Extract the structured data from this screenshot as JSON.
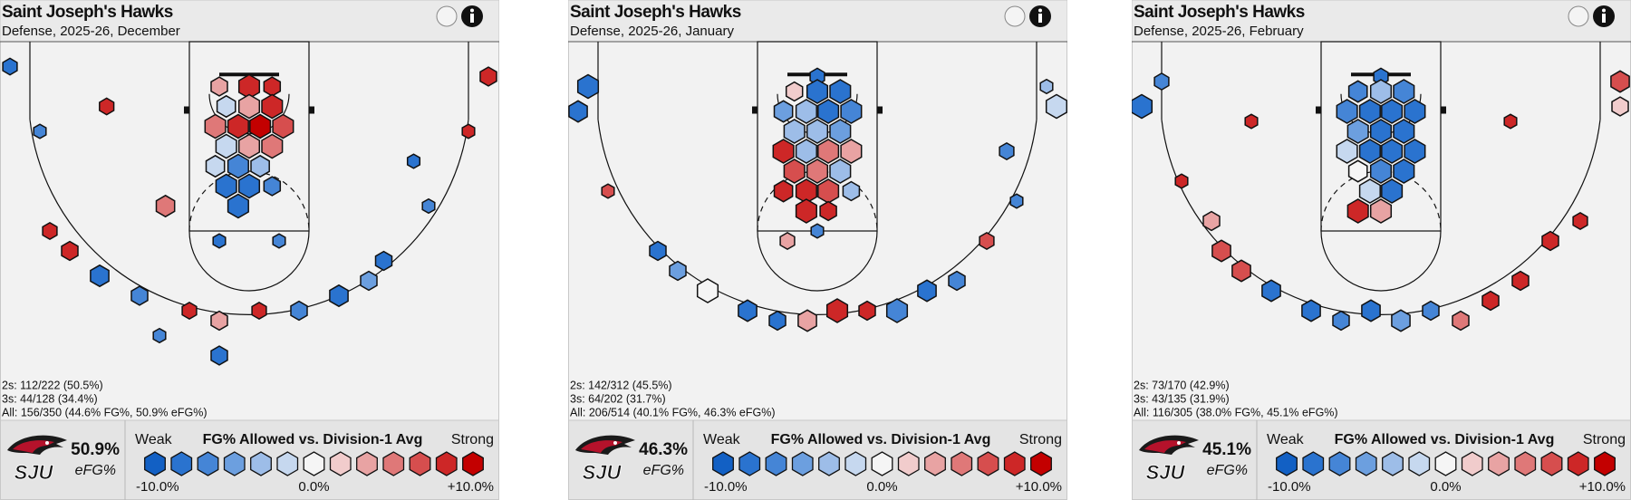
{
  "legend": {
    "weak": "Weak",
    "title": "FG% Allowed vs. Division-1 Avg",
    "strong": "Strong",
    "ticks": [
      {
        "value": -10,
        "label": "-10.0%"
      },
      {
        "value": 0,
        "label": "0.0%"
      },
      {
        "value": 10,
        "label": "+10.0%"
      }
    ],
    "colors": [
      "#1260c4",
      "#2a73cf",
      "#4585d6",
      "#6c9fdf",
      "#9dbde8",
      "#c6d8ef",
      "#f5f5f5",
      "#f1cccc",
      "#e8a3a3",
      "#df7878",
      "#d64e4e",
      "#cd2727",
      "#c30000"
    ]
  },
  "panels": [
    {
      "title": "Saint Joseph's Hawks",
      "subtitle": "Defense, 2025-26, December",
      "stats": [
        "2s: 112/222 (50.5%)",
        "3s: 44/128 (34.4%)",
        "All: 156/350 (44.6% FG%, 50.9% eFG%)"
      ],
      "efg": "50.9%",
      "efg_label": "eFG%",
      "logo_text": "SJU",
      "hexes": [
        {
          "x": -3,
          "y": 4.5,
          "size": 0.8,
          "diff": 4
        },
        {
          "x": 0,
          "y": 4.5,
          "size": 1,
          "diff": 8
        },
        {
          "x": 2.3,
          "y": 4.5,
          "size": 0.8,
          "diff": 8
        },
        {
          "x": -2.3,
          "y": 6.5,
          "size": 0.9,
          "diff": -2
        },
        {
          "x": 0,
          "y": 6.5,
          "size": 1,
          "diff": 3
        },
        {
          "x": 2.3,
          "y": 6.5,
          "size": 1,
          "diff": 9
        },
        {
          "x": -3.4,
          "y": 8.5,
          "size": 1,
          "diff": 5
        },
        {
          "x": -1.1,
          "y": 8.5,
          "size": 1,
          "diff": 9
        },
        {
          "x": 1.1,
          "y": 8.5,
          "size": 1,
          "diff": 10
        },
        {
          "x": 3.4,
          "y": 8.5,
          "size": 1,
          "diff": 6
        },
        {
          "x": -2.3,
          "y": 10.5,
          "size": 1,
          "diff": -1
        },
        {
          "x": 0,
          "y": 10.5,
          "size": 1,
          "diff": 4
        },
        {
          "x": 2.3,
          "y": 10.5,
          "size": 1,
          "diff": 5
        },
        {
          "x": -3.4,
          "y": 12.5,
          "size": 0.9,
          "diff": -1
        },
        {
          "x": -1.1,
          "y": 12.5,
          "size": 1,
          "diff": -7
        },
        {
          "x": 1.1,
          "y": 12.5,
          "size": 0.9,
          "diff": -3
        },
        {
          "x": -2.3,
          "y": 14.5,
          "size": 1,
          "diff": -9
        },
        {
          "x": 0,
          "y": 14.5,
          "size": 1,
          "diff": -8
        },
        {
          "x": 2.3,
          "y": 14.5,
          "size": 0.8,
          "diff": -6
        },
        {
          "x": -1.1,
          "y": 16.5,
          "size": 1,
          "diff": -9
        },
        {
          "x": -8.4,
          "y": 16.5,
          "size": 0.9,
          "diff": 5
        },
        {
          "x": -24,
          "y": 2.5,
          "size": 0.7,
          "diff": -8
        },
        {
          "x": 24,
          "y": 3.5,
          "size": 0.8,
          "diff": 9
        },
        {
          "x": -14.3,
          "y": 6.5,
          "size": 0.7,
          "diff": 8
        },
        {
          "x": -21,
          "y": 9,
          "size": 0.6,
          "diff": -7
        },
        {
          "x": 22,
          "y": 9,
          "size": 0.6,
          "diff": 8
        },
        {
          "x": -18,
          "y": 21,
          "size": 0.8,
          "diff": 9
        },
        {
          "x": -20,
          "y": 19,
          "size": 0.7,
          "diff": 8
        },
        {
          "x": -15,
          "y": 23.5,
          "size": 0.9,
          "diff": -8
        },
        {
          "x": -11,
          "y": 25.5,
          "size": 0.8,
          "diff": -7
        },
        {
          "x": -6,
          "y": 27,
          "size": 0.7,
          "diff": 9
        },
        {
          "x": -3,
          "y": 28,
          "size": 0.8,
          "diff": 3
        },
        {
          "x": 1,
          "y": 27,
          "size": 0.7,
          "diff": 8
        },
        {
          "x": 5,
          "y": 27,
          "size": 0.8,
          "diff": -6
        },
        {
          "x": 9,
          "y": 25.5,
          "size": 0.9,
          "diff": -8
        },
        {
          "x": 12,
          "y": 24,
          "size": 0.8,
          "diff": -5
        },
        {
          "x": 13.5,
          "y": 22,
          "size": 0.8,
          "diff": -8
        },
        {
          "x": -3,
          "y": 31.5,
          "size": 0.8,
          "diff": -9
        },
        {
          "x": -9,
          "y": 29.5,
          "size": 0.6,
          "diff": -7
        },
        {
          "x": 18,
          "y": 16.5,
          "size": 0.6,
          "diff": -6
        },
        {
          "x": 16.5,
          "y": 12,
          "size": 0.6,
          "diff": -8
        },
        {
          "x": -3,
          "y": 20,
          "size": 0.6,
          "diff": -8
        },
        {
          "x": 3,
          "y": 20,
          "size": 0.6,
          "diff": -6
        }
      ]
    },
    {
      "title": "Saint Joseph's Hawks",
      "subtitle": "Defense, 2025-26, January",
      "stats": [
        "2s: 142/312 (45.5%)",
        "3s: 64/202 (31.7%)",
        "All: 206/514 (40.1% FG%, 46.3% eFG%)"
      ],
      "efg": "46.3%",
      "efg_label": "eFG%",
      "logo_text": "SJU",
      "hexes": [
        {
          "x": 0,
          "y": 3.5,
          "size": 0.7,
          "diff": -9
        },
        {
          "x": -2.3,
          "y": 5,
          "size": 0.8,
          "diff": 2
        },
        {
          "x": 0,
          "y": 5,
          "size": 1,
          "diff": -9
        },
        {
          "x": 2.3,
          "y": 5,
          "size": 1,
          "diff": -9
        },
        {
          "x": -3.4,
          "y": 7,
          "size": 0.9,
          "diff": -5
        },
        {
          "x": -1.1,
          "y": 7,
          "size": 1,
          "diff": -3
        },
        {
          "x": 1.1,
          "y": 7,
          "size": 1,
          "diff": -8
        },
        {
          "x": 3.4,
          "y": 7,
          "size": 1,
          "diff": -7
        },
        {
          "x": -2.3,
          "y": 9,
          "size": 1,
          "diff": -4
        },
        {
          "x": 0,
          "y": 9,
          "size": 1,
          "diff": -4
        },
        {
          "x": 2.3,
          "y": 9,
          "size": 1,
          "diff": -5
        },
        {
          "x": -3.4,
          "y": 11,
          "size": 1,
          "diff": 8
        },
        {
          "x": -1.1,
          "y": 11,
          "size": 1,
          "diff": -3
        },
        {
          "x": 1.1,
          "y": 11,
          "size": 1,
          "diff": 5
        },
        {
          "x": 3.4,
          "y": 11,
          "size": 1,
          "diff": 3
        },
        {
          "x": -2.3,
          "y": 13,
          "size": 1,
          "diff": 7
        },
        {
          "x": 0,
          "y": 13,
          "size": 1,
          "diff": 5
        },
        {
          "x": 2.3,
          "y": 13,
          "size": 1,
          "diff": -3
        },
        {
          "x": -3.4,
          "y": 15,
          "size": 0.9,
          "diff": 8
        },
        {
          "x": -1.1,
          "y": 15,
          "size": 1,
          "diff": 9
        },
        {
          "x": 1.1,
          "y": 15,
          "size": 1,
          "diff": 6
        },
        {
          "x": 3.4,
          "y": 15,
          "size": 0.8,
          "diff": -4
        },
        {
          "x": -1.1,
          "y": 17,
          "size": 1,
          "diff": 8
        },
        {
          "x": 1.1,
          "y": 17,
          "size": 0.8,
          "diff": 9
        },
        {
          "x": -23,
          "y": 4.5,
          "size": 1,
          "diff": -8
        },
        {
          "x": -24,
          "y": 7,
          "size": 0.9,
          "diff": -9
        },
        {
          "x": 24,
          "y": 6.5,
          "size": 1,
          "diff": -1
        },
        {
          "x": 23,
          "y": 4.5,
          "size": 0.6,
          "diff": -4
        },
        {
          "x": 19,
          "y": 11,
          "size": 0.7,
          "diff": -6
        },
        {
          "x": -21,
          "y": 15,
          "size": 0.6,
          "diff": 7
        },
        {
          "x": -16,
          "y": 21,
          "size": 0.8,
          "diff": -9
        },
        {
          "x": -14,
          "y": 23,
          "size": 0.8,
          "diff": -5
        },
        {
          "x": -11,
          "y": 25,
          "size": 1,
          "diff": 0
        },
        {
          "x": -7,
          "y": 27,
          "size": 0.9,
          "diff": -8
        },
        {
          "x": -4,
          "y": 28,
          "size": 0.8,
          "diff": -9
        },
        {
          "x": -1,
          "y": 28,
          "size": 0.9,
          "diff": 4
        },
        {
          "x": 2,
          "y": 27,
          "size": 1,
          "diff": 9
        },
        {
          "x": 5,
          "y": 27,
          "size": 0.8,
          "diff": 8
        },
        {
          "x": 8,
          "y": 27,
          "size": 1,
          "diff": -6
        },
        {
          "x": 11,
          "y": 25,
          "size": 0.9,
          "diff": -8
        },
        {
          "x": 14,
          "y": 24,
          "size": 0.8,
          "diff": -7
        },
        {
          "x": 17,
          "y": 20,
          "size": 0.7,
          "diff": 6
        },
        {
          "x": 20,
          "y": 16,
          "size": 0.6,
          "diff": -6
        },
        {
          "x": -3,
          "y": 20,
          "size": 0.7,
          "diff": 3
        },
        {
          "x": 0,
          "y": 19,
          "size": 0.6,
          "diff": -7
        }
      ]
    },
    {
      "title": "Saint Joseph's Hawks",
      "subtitle": "Defense, 2025-26, February",
      "stats": [
        "2s: 73/170 (42.9%)",
        "3s: 43/135 (31.9%)",
        "All: 116/305 (38.0% FG%, 45.1% eFG%)"
      ],
      "efg": "45.1%",
      "efg_label": "eFG%",
      "logo_text": "SJU",
      "hexes": [
        {
          "x": 0,
          "y": 3.5,
          "size": 0.7,
          "diff": -8
        },
        {
          "x": -2.3,
          "y": 5,
          "size": 0.9,
          "diff": -7
        },
        {
          "x": 0,
          "y": 5,
          "size": 1,
          "diff": -3
        },
        {
          "x": 2.3,
          "y": 5,
          "size": 1,
          "diff": -6
        },
        {
          "x": -3.4,
          "y": 7,
          "size": 1,
          "diff": -7
        },
        {
          "x": -1.1,
          "y": 7,
          "size": 1,
          "diff": -8
        },
        {
          "x": 1.1,
          "y": 7,
          "size": 1,
          "diff": -9
        },
        {
          "x": 3.4,
          "y": 7,
          "size": 1,
          "diff": -8
        },
        {
          "x": -2.3,
          "y": 9,
          "size": 1,
          "diff": -5
        },
        {
          "x": 0,
          "y": 9,
          "size": 1,
          "diff": -9
        },
        {
          "x": 2.3,
          "y": 9,
          "size": 1,
          "diff": -9
        },
        {
          "x": -3.4,
          "y": 11,
          "size": 1,
          "diff": -2
        },
        {
          "x": -1.1,
          "y": 11,
          "size": 1,
          "diff": -9
        },
        {
          "x": 1.1,
          "y": 11,
          "size": 1,
          "diff": -9
        },
        {
          "x": 3.4,
          "y": 11,
          "size": 1,
          "diff": -8
        },
        {
          "x": -2.3,
          "y": 13,
          "size": 0.9,
          "diff": 0
        },
        {
          "x": 0,
          "y": 13,
          "size": 1,
          "diff": -6
        },
        {
          "x": 2.3,
          "y": 13,
          "size": 1,
          "diff": -8
        },
        {
          "x": -1.1,
          "y": 15,
          "size": 1,
          "diff": -2
        },
        {
          "x": 1.1,
          "y": 15,
          "size": 1,
          "diff": -9
        },
        {
          "x": -2.3,
          "y": 17,
          "size": 1,
          "diff": 8
        },
        {
          "x": 0,
          "y": 17,
          "size": 1,
          "diff": 4
        },
        {
          "x": -24,
          "y": 6.5,
          "size": 1,
          "diff": -8
        },
        {
          "x": -22,
          "y": 4,
          "size": 0.7,
          "diff": -6
        },
        {
          "x": 24,
          "y": 4,
          "size": 0.9,
          "diff": 6
        },
        {
          "x": 24,
          "y": 6.5,
          "size": 0.8,
          "diff": 1
        },
        {
          "x": -20,
          "y": 14,
          "size": 0.6,
          "diff": 8
        },
        {
          "x": -17,
          "y": 18,
          "size": 0.8,
          "diff": 4
        },
        {
          "x": -16,
          "y": 21,
          "size": 0.9,
          "diff": 6
        },
        {
          "x": -14,
          "y": 23,
          "size": 0.9,
          "diff": 7
        },
        {
          "x": -11,
          "y": 25,
          "size": 0.9,
          "diff": -8
        },
        {
          "x": -7,
          "y": 27,
          "size": 0.9,
          "diff": -9
        },
        {
          "x": -4,
          "y": 28,
          "size": 0.8,
          "diff": -7
        },
        {
          "x": -1,
          "y": 27,
          "size": 0.9,
          "diff": -9
        },
        {
          "x": 2,
          "y": 28,
          "size": 0.9,
          "diff": -5
        },
        {
          "x": 5,
          "y": 27,
          "size": 0.8,
          "diff": -6
        },
        {
          "x": 8,
          "y": 28,
          "size": 0.8,
          "diff": 5
        },
        {
          "x": 11,
          "y": 26,
          "size": 0.8,
          "diff": 9
        },
        {
          "x": 14,
          "y": 24,
          "size": 0.8,
          "diff": 8
        },
        {
          "x": 17,
          "y": 20,
          "size": 0.8,
          "diff": 9
        },
        {
          "x": 20,
          "y": 18,
          "size": 0.7,
          "diff": 8
        },
        {
          "x": -13,
          "y": 8,
          "size": 0.6,
          "diff": 8
        },
        {
          "x": 13,
          "y": 8,
          "size": 0.6,
          "diff": 8
        }
      ]
    }
  ]
}
